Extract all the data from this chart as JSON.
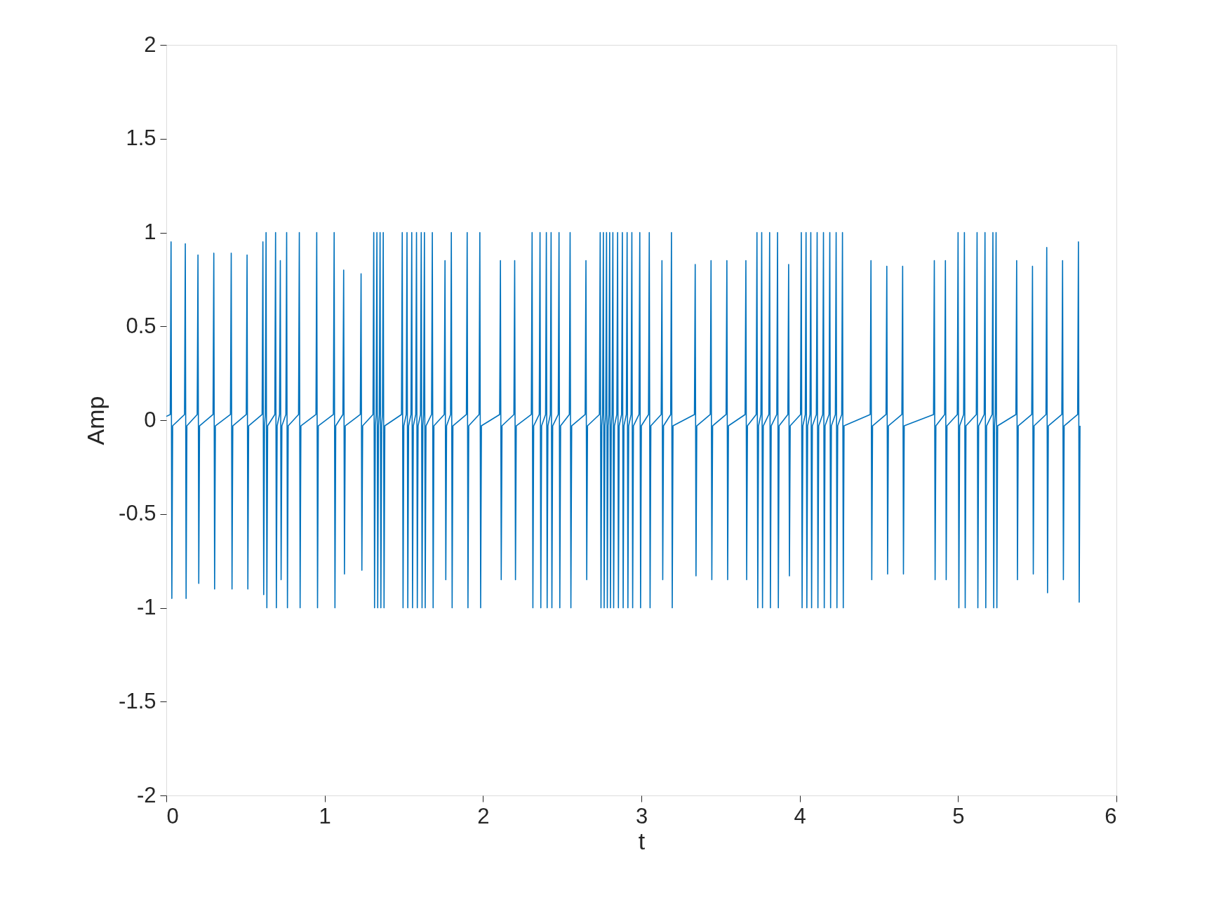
{
  "chart_data": {
    "type": "line",
    "xlabel": "t",
    "ylabel": "Amp",
    "xlim": [
      0,
      6
    ],
    "ylim": [
      -2,
      2
    ],
    "xticks": [
      0,
      1,
      2,
      3,
      4,
      5,
      6
    ],
    "yticks": [
      -2,
      -1.5,
      -1,
      -0.5,
      0,
      0.5,
      1,
      1.5,
      2
    ],
    "grid": false,
    "line_style": "solid",
    "marker": "none",
    "series": [
      {
        "color": "#0072bd",
        "x": [
          0,
          0.025,
          0.03,
          0.035,
          0.04,
          0.115,
          0.12,
          0.125,
          0.13,
          0.195,
          0.2,
          0.205,
          0.21,
          0.295,
          0.3,
          0.305,
          0.31,
          0.405,
          0.41,
          0.415,
          0.42,
          0.505,
          0.51,
          0.515,
          0.52,
          0.605,
          0.61,
          0.615,
          0.62,
          0.625,
          0.63,
          0.635,
          0.64,
          0.685,
          0.69,
          0.695,
          0.7,
          0.715,
          0.72,
          0.725,
          0.73,
          0.755,
          0.76,
          0.765,
          0.77,
          0.835,
          0.84,
          0.845,
          0.85,
          0.945,
          0.95,
          0.955,
          0.96,
          1.055,
          1.06,
          1.065,
          1.07,
          1.115,
          1.12,
          1.125,
          1.13,
          1.225,
          1.23,
          1.235,
          1.24,
          1.305,
          1.31,
          1.315,
          1.32,
          1.325,
          1.33,
          1.335,
          1.34,
          1.345,
          1.35,
          1.355,
          1.36,
          1.365,
          1.37,
          1.375,
          1.38,
          1.485,
          1.49,
          1.495,
          1.5,
          1.515,
          1.52,
          1.525,
          1.53,
          1.545,
          1.55,
          1.555,
          1.56,
          1.575,
          1.58,
          1.585,
          1.59,
          1.605,
          1.61,
          1.615,
          1.62,
          1.625,
          1.63,
          1.635,
          1.64,
          1.675,
          1.68,
          1.685,
          1.69,
          1.755,
          1.76,
          1.765,
          1.77,
          1.795,
          1.8,
          1.805,
          1.81,
          1.895,
          1.9,
          1.905,
          1.91,
          1.975,
          1.98,
          1.985,
          1.99,
          2.105,
          2.11,
          2.115,
          2.12,
          2.195,
          2.2,
          2.205,
          2.21,
          2.305,
          2.31,
          2.315,
          2.32,
          2.355,
          2.36,
          2.365,
          2.37,
          2.395,
          2.4,
          2.405,
          2.41,
          2.425,
          2.43,
          2.435,
          2.44,
          2.475,
          2.48,
          2.485,
          2.49,
          2.545,
          2.55,
          2.555,
          2.56,
          2.645,
          2.65,
          2.655,
          2.66,
          2.735,
          2.74,
          2.745,
          2.75,
          2.755,
          2.76,
          2.765,
          2.77,
          2.775,
          2.78,
          2.785,
          2.79,
          2.795,
          2.8,
          2.805,
          2.81,
          2.815,
          2.82,
          2.825,
          2.83,
          2.845,
          2.85,
          2.855,
          2.86,
          2.875,
          2.88,
          2.885,
          2.89,
          2.905,
          2.91,
          2.915,
          2.92,
          2.935,
          2.94,
          2.945,
          2.95,
          2.985,
          2.99,
          2.995,
          3,
          3.045,
          3.05,
          3.055,
          3.06,
          3.125,
          3.13,
          3.135,
          3.14,
          3.185,
          3.19,
          3.195,
          3.2,
          3.335,
          3.34,
          3.345,
          3.35,
          3.435,
          3.44,
          3.445,
          3.45,
          3.535,
          3.54,
          3.545,
          3.55,
          3.655,
          3.66,
          3.665,
          3.67,
          3.725,
          3.73,
          3.735,
          3.74,
          3.755,
          3.76,
          3.765,
          3.77,
          3.805,
          3.81,
          3.815,
          3.82,
          3.855,
          3.86,
          3.865,
          3.87,
          3.925,
          3.93,
          3.935,
          3.94,
          4.005,
          4.01,
          4.015,
          4.02,
          4.035,
          4.04,
          4.045,
          4.05,
          4.065,
          4.07,
          4.075,
          4.08,
          4.105,
          4.11,
          4.115,
          4.12,
          4.145,
          4.15,
          4.155,
          4.16,
          4.185,
          4.19,
          4.195,
          4.2,
          4.225,
          4.23,
          4.235,
          4.24,
          4.265,
          4.27,
          4.275,
          4.28,
          4.445,
          4.45,
          4.455,
          4.46,
          4.545,
          4.55,
          4.555,
          4.56,
          4.645,
          4.65,
          4.655,
          4.66,
          4.845,
          4.85,
          4.855,
          4.86,
          4.915,
          4.92,
          4.925,
          4.93,
          4.995,
          5,
          5.005,
          5.01,
          5.035,
          5.04,
          5.045,
          5.05,
          5.115,
          5.12,
          5.125,
          5.13,
          5.165,
          5.17,
          5.175,
          5.18,
          5.215,
          5.22,
          5.225,
          5.23,
          5.235,
          5.24,
          5.245,
          5.25,
          5.365,
          5.37,
          5.375,
          5.38,
          5.465,
          5.47,
          5.475,
          5.48,
          5.555,
          5.56,
          5.565,
          5.57,
          5.655,
          5.66,
          5.665,
          5.67,
          5.755,
          5.76,
          5.765,
          5.77
        ],
        "values": [
          0.02,
          0.03,
          0.95,
          -0.95,
          -0.03,
          0.03,
          0.94,
          -0.95,
          -0.03,
          0.03,
          0.88,
          -0.87,
          -0.03,
          0.03,
          0.89,
          -0.9,
          -0.03,
          0.03,
          0.89,
          -0.9,
          -0.03,
          0.03,
          0.88,
          -0.9,
          -0.03,
          0.03,
          0.95,
          -0.93,
          -0.03,
          0.03,
          1,
          -1,
          -0.03,
          0.03,
          1,
          -1,
          -0.03,
          0.03,
          0.85,
          -0.85,
          -0.03,
          0.03,
          1,
          -1,
          -0.03,
          0.03,
          1,
          -1,
          -0.03,
          0.03,
          1,
          -1,
          -0.03,
          0.03,
          1,
          -1,
          -0.03,
          0.03,
          0.8,
          -0.82,
          -0.03,
          0.03,
          0.78,
          -0.8,
          -0.03,
          0.03,
          1,
          -1,
          -0.03,
          0.03,
          1,
          -1,
          -0.03,
          0.03,
          1,
          -1,
          -0.03,
          0.03,
          1,
          -1,
          -0.03,
          0.03,
          1,
          -1,
          -0.03,
          0.03,
          1,
          -1,
          -0.03,
          0.03,
          1,
          -1,
          -0.03,
          0.03,
          1,
          -1,
          -0.03,
          0.03,
          1,
          -1,
          -0.03,
          0.03,
          1,
          -1,
          -0.03,
          0.03,
          1,
          -1,
          -0.03,
          0.03,
          0.85,
          -0.85,
          -0.03,
          0.03,
          1,
          -1,
          -0.03,
          0.03,
          1,
          -1,
          -0.03,
          0.03,
          1,
          -1,
          -0.03,
          0.03,
          0.85,
          -0.85,
          -0.03,
          0.03,
          0.85,
          -0.85,
          -0.03,
          0.03,
          1,
          -1,
          -0.03,
          0.03,
          1,
          -1,
          -0.03,
          0.03,
          1,
          -1,
          -0.03,
          0.03,
          1,
          -1,
          -0.03,
          0.03,
          1,
          -1,
          -0.03,
          0.03,
          1,
          -1,
          -0.03,
          0.03,
          0.85,
          -0.85,
          -0.03,
          0.03,
          1,
          -1,
          -0.03,
          0.03,
          1,
          -1,
          -0.03,
          0.03,
          1,
          -1,
          -0.03,
          0.03,
          1,
          -1,
          -0.03,
          0.03,
          1,
          -1,
          -0.03,
          0.03,
          1,
          -1,
          -0.03,
          0.03,
          1,
          -1,
          -0.03,
          0.03,
          1,
          -1,
          -0.03,
          0.03,
          1,
          -1,
          -0.03,
          0.03,
          1,
          -1,
          -0.03,
          0.03,
          1,
          -1,
          -0.03,
          0.03,
          0.85,
          -0.85,
          -0.03,
          0.03,
          1,
          -1,
          -0.03,
          0.03,
          0.83,
          -0.83,
          -0.03,
          0.03,
          0.85,
          -0.85,
          -0.03,
          0.03,
          0.85,
          -0.85,
          -0.03,
          0.03,
          0.85,
          -0.85,
          -0.03,
          0.03,
          1,
          -1,
          -0.03,
          0.03,
          1,
          -1,
          -0.03,
          0.03,
          1,
          -1,
          -0.03,
          0.03,
          1,
          -1,
          -0.03,
          0.03,
          0.83,
          -0.83,
          -0.03,
          0.03,
          1,
          -1,
          -0.03,
          0.03,
          1,
          -1,
          -0.03,
          0.03,
          1,
          -1,
          -0.03,
          0.03,
          1,
          -1,
          -0.03,
          0.03,
          1,
          -1,
          -0.03,
          0.03,
          1,
          -1,
          -0.03,
          0.03,
          1,
          -1,
          -0.03,
          0.03,
          1,
          -1,
          -0.03,
          0.03,
          0.85,
          -0.85,
          -0.03,
          0.03,
          0.82,
          -0.82,
          -0.03,
          0.03,
          0.82,
          -0.82,
          -0.03,
          0.03,
          0.85,
          -0.85,
          -0.03,
          0.03,
          0.85,
          -0.85,
          -0.03,
          0.03,
          1,
          -1,
          -0.03,
          0.03,
          1,
          -1,
          -0.03,
          0.03,
          1,
          -1,
          -0.03,
          0.03,
          1,
          -1,
          -0.03,
          0.03,
          1,
          -1,
          -0.03,
          0.03,
          1,
          -1,
          -0.03,
          0.03,
          0.85,
          -0.85,
          -0.03,
          0.03,
          0.82,
          -0.82,
          -0.03,
          0.03,
          0.92,
          -0.92,
          -0.03,
          0.03,
          0.85,
          -0.85,
          -0.03,
          0.03,
          0.95,
          -0.97,
          -0.03
        ]
      }
    ]
  }
}
